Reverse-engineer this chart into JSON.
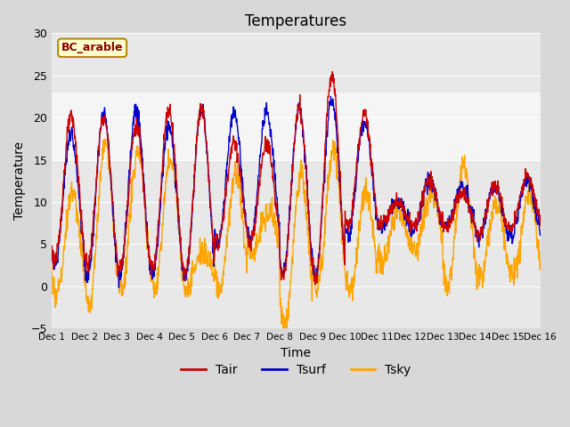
{
  "title": "Temperatures",
  "xlabel": "Time",
  "ylabel": "Temperature",
  "ylim": [
    -5,
    30
  ],
  "xlim": [
    0,
    15
  ],
  "fig_bg": "#d8d8d8",
  "plot_bg": "#e8e8e8",
  "tair_color": "#cc0000",
  "tsurf_color": "#0000cc",
  "tsky_color": "#ffa500",
  "legend_labels": [
    "Tair",
    "Tsurf",
    "Tsky"
  ],
  "site_label": "BC_arable",
  "site_box_bg": "#ffffcc",
  "site_box_edge": "#b8860b",
  "site_label_color": "#8b0000",
  "yticks": [
    -5,
    0,
    5,
    10,
    15,
    20,
    25,
    30
  ],
  "xtick_labels": [
    "Dec 1",
    "Dec 2",
    "Dec 3",
    "Dec 4",
    "Dec 5",
    "Dec 6",
    "Dec 7",
    "Dec 8",
    "Dec 9",
    "Dec 10",
    "Dec 11",
    "Dec 12",
    "Dec 13",
    "Dec 14",
    "Dec 15",
    "Dec 16"
  ],
  "shaded_band_y1": 15,
  "shaded_band_y2": 23,
  "grid_color": "#ffffff",
  "line_width": 1.0
}
